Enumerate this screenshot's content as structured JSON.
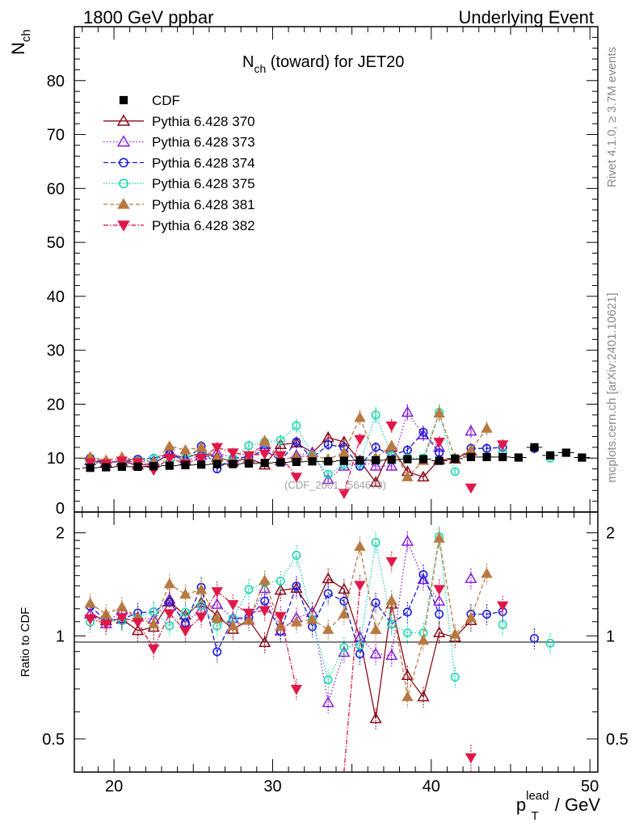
{
  "header": {
    "left": "1800 GeV ppbar",
    "right": "Underlying Event"
  },
  "side_labels": {
    "rivet": "Rivet 4.1.0, ≥ 3.7M events",
    "mcplots": "mcplots.cern.ch [arXiv:2401.10621]"
  },
  "chart_data": {
    "type": "scatter",
    "title": "N_ch (toward) for JET20",
    "title_main": "N",
    "title_sub": "ch",
    "title_rest": " (toward) for JET20",
    "watermark": "(CDF_2001_I564673)",
    "xlabel_main": "p",
    "xlabel_sub": "T",
    "xlabel_sup": "lead",
    "xlabel_unit": " / GeV",
    "ylabel_main": "N",
    "ylabel_sub": "ch",
    "ratio_ylabel": "Ratio to CDF",
    "xlim": [
      17.5,
      50.5
    ],
    "ylim": [
      0,
      90
    ],
    "ratio_ylim": [
      0.4,
      2.3
    ],
    "x_ticks": [
      20,
      30,
      40,
      50
    ],
    "y_ticks": [
      0,
      10,
      20,
      30,
      40,
      50,
      60,
      70,
      80
    ],
    "ratio_ticks": [
      0.5,
      1,
      2
    ],
    "x": [
      18.5,
      19.5,
      20.5,
      21.5,
      22.5,
      23.5,
      24.5,
      25.5,
      26.5,
      27.5,
      28.5,
      29.5,
      30.5,
      31.5,
      32.5,
      33.5,
      34.5,
      35.5,
      36.5,
      37.5,
      38.5,
      39.5,
      40.5,
      41.5,
      42.5,
      43.5,
      44.5,
      45.5,
      46.5,
      47.5,
      48.5,
      49.5
    ],
    "series": [
      {
        "name": "CDF",
        "color": "#000000",
        "marker": "square",
        "dash": "",
        "values": [
          8.2,
          8.3,
          8.4,
          8.4,
          8.5,
          8.6,
          8.7,
          8.8,
          8.9,
          8.9,
          9.0,
          9.1,
          9.2,
          9.3,
          9.4,
          9.4,
          9.5,
          9.6,
          9.6,
          9.7,
          9.8,
          9.8,
          9.5,
          9.9,
          10.2,
          10.2,
          10.2,
          10.1,
          12.0,
          10.5,
          11.0,
          10.1
        ]
      },
      {
        "name": "Pythia 6.428 370",
        "color": "#8b0a1a",
        "marker": "triangle-open",
        "dash": "",
        "values": [
          9.5,
          9.2,
          9.4,
          8.7,
          9.0,
          10.8,
          10.0,
          11.0,
          10.2,
          9.3,
          10.0,
          8.7,
          12.5,
          12.8,
          11.0,
          13.8,
          13.0,
          9.5,
          5.5,
          12.0,
          7.5,
          6.5,
          9.7,
          9.8,
          11.3,
          null,
          null,
          null,
          null,
          null,
          null,
          null
        ]
      },
      {
        "name": "Pythia 6.428 373",
        "color": "#8a1ed6",
        "marker": "triangle-open",
        "dash": "1.5,2.5",
        "values": [
          9.5,
          9.0,
          10.0,
          9.5,
          9.5,
          11.0,
          9.5,
          10.5,
          11.0,
          10.0,
          10.0,
          12.5,
          9.5,
          10.5,
          11.0,
          6.0,
          8.5,
          9.5,
          8.5,
          8.5,
          18.5,
          14.3,
          12.0,
          null,
          15.0,
          null,
          null,
          null,
          null,
          null,
          null,
          null
        ]
      },
      {
        "name": "Pythia 6.428 374",
        "color": "#1a1ad8",
        "marker": "circle-open",
        "dash": "6,3",
        "values": [
          10.0,
          9.2,
          9.4,
          9.8,
          10.0,
          10.8,
          9.5,
          12.2,
          8.0,
          10.0,
          10.2,
          11.5,
          9.5,
          13.0,
          10.0,
          12.5,
          12.0,
          8.5,
          12.0,
          10.5,
          11.5,
          14.8,
          11.0,
          null,
          11.8,
          11.8,
          12.0,
          null,
          11.8,
          null,
          null,
          null
        ]
      },
      {
        "name": "Pythia 6.428 375",
        "color": "#1fd8b0",
        "marker": "circle-open",
        "dash": "1.5,2",
        "values": [
          9.0,
          9.3,
          9.3,
          9.5,
          10.0,
          9.2,
          10.2,
          10.8,
          9.5,
          10.0,
          12.3,
          13.0,
          13.3,
          16.0,
          10.5,
          7.0,
          8.8,
          9.0,
          18.0,
          10.5,
          10.0,
          10.0,
          18.5,
          7.5,
          null,
          null,
          11.0,
          null,
          null,
          10.0,
          null,
          null
        ]
      },
      {
        "name": "Pythia 6.428 381",
        "color": "#b87a40",
        "marker": "triangle-filled",
        "dash": "5,3",
        "values": [
          10.2,
          9.6,
          10.2,
          9.5,
          9.2,
          12.2,
          11.5,
          12.0,
          10.0,
          9.5,
          10.0,
          13.2,
          9.8,
          10.2,
          10.5,
          9.8,
          11.0,
          17.5,
          10.0,
          12.3,
          6.5,
          9.5,
          18.3,
          10.0,
          11.5,
          15.5,
          null,
          null,
          null,
          null,
          null,
          null
        ]
      },
      {
        "name": "Pythia 6.428 382",
        "color": "#e01848",
        "marker": "triangle-down-filled",
        "dash": "6,2,1.5,2",
        "values": [
          9.2,
          9.0,
          9.5,
          9.2,
          7.8,
          10.0,
          9.0,
          10.0,
          12.0,
          11.0,
          10.5,
          10.8,
          10.5,
          6.5,
          null,
          null,
          3.5,
          13.5,
          null,
          16.0,
          null,
          null,
          13.0,
          null,
          4.5,
          null,
          12.5,
          null,
          null,
          null,
          null,
          null
        ]
      }
    ]
  }
}
